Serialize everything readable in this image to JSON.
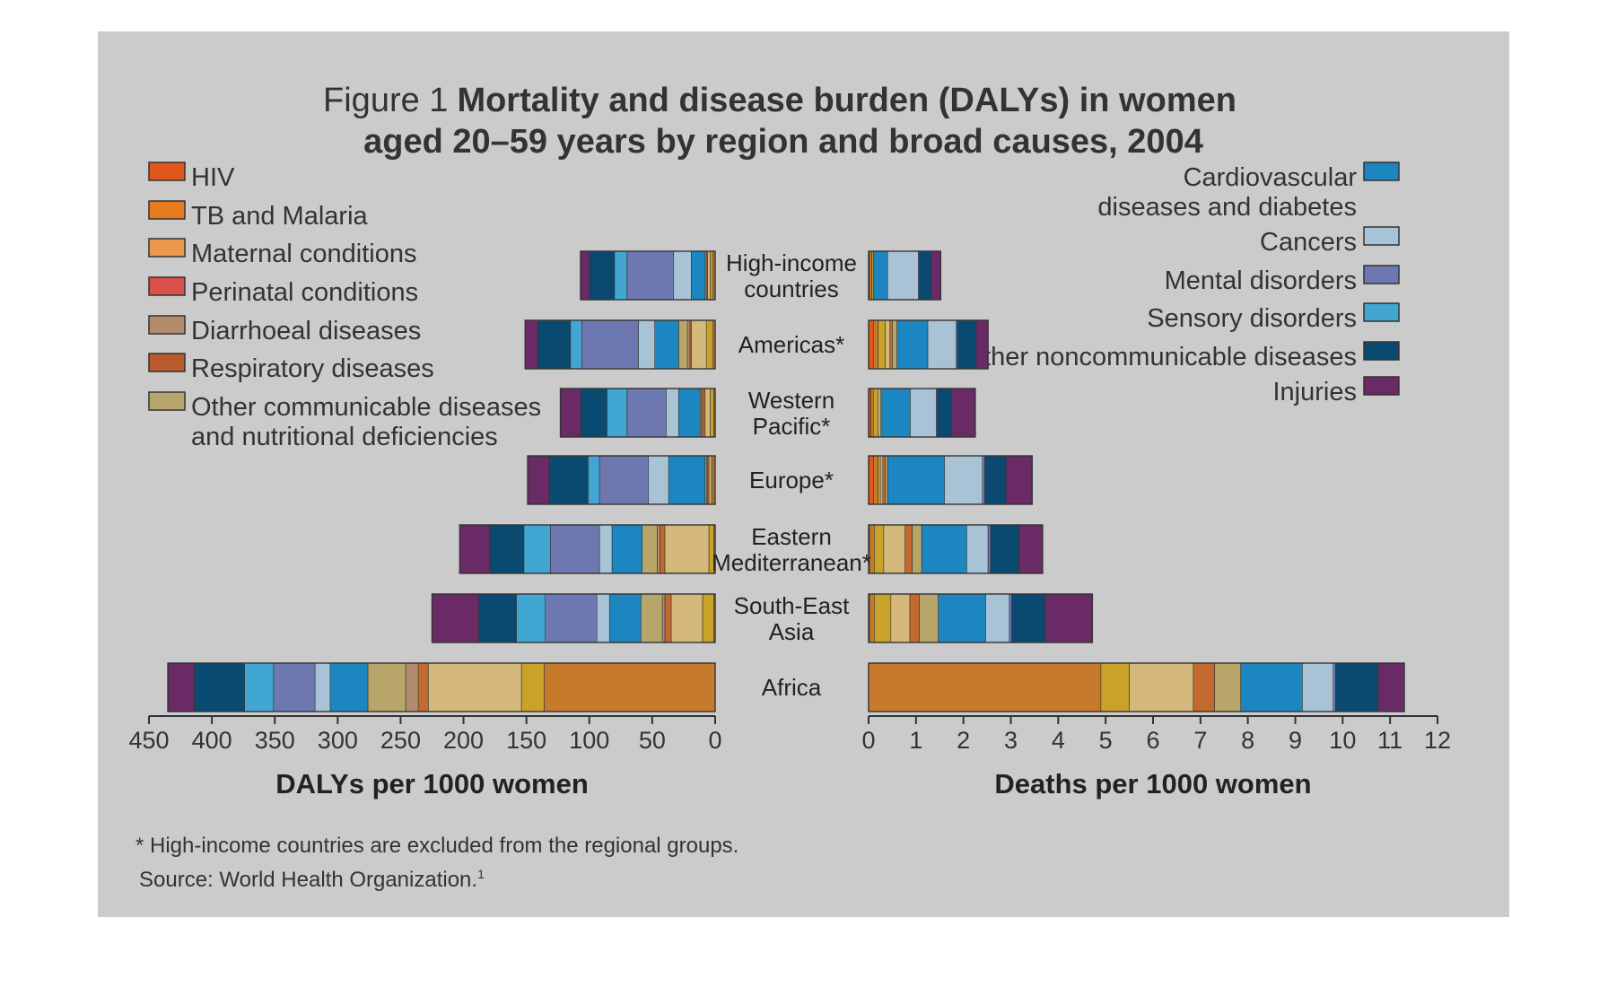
{
  "title": {
    "prefix": "Figure 1",
    "line1_bold": "Mortality and disease burden (DALYs) in women",
    "line2_bold": "aged 20–59 years by region and broad causes, 2004"
  },
  "legend_left": [
    {
      "label": "HIV",
      "color": "#e0561b"
    },
    {
      "label": "TB and Malaria",
      "color": "#e87a1e"
    },
    {
      "label": "Maternal conditions",
      "color": "#ea9a4a"
    },
    {
      "label": "Perinatal conditions",
      "color": "#d94f4a"
    },
    {
      "label": "Diarrhoeal diseases",
      "color": "#b38b6d"
    },
    {
      "label": "Respiratory diseases",
      "color": "#b85a2a"
    },
    {
      "label": "Other communicable diseases",
      "label2": "and nutritional deficiencies",
      "color": "#b8a56a"
    }
  ],
  "legend_right": [
    {
      "label": "Cardiovascular",
      "label2": "diseases and diabetes",
      "color": "#1b86bf"
    },
    {
      "label": "Cancers",
      "color": "#a9c3d6"
    },
    {
      "label": "Mental disorders",
      "color": "#6e78b0"
    },
    {
      "label": "Sensory disorders",
      "color": "#41a7d2"
    },
    {
      "label": "Other noncommunicable diseases",
      "color": "#0b4a70"
    },
    {
      "label": "Injuries",
      "color": "#6a2a66"
    }
  ],
  "chart_data": [
    {
      "type": "bar",
      "orientation": "horizontal",
      "stacked": true,
      "direction": "right-to-left",
      "xlabel": "DALYs per 1000 women",
      "xlim": [
        450,
        0
      ],
      "xticks": [
        "450",
        "400",
        "350",
        "300",
        "250",
        "200",
        "150",
        "100",
        "50",
        "0"
      ],
      "categories": [
        "High-income countries",
        "Americas*",
        "Western Pacific*",
        "Europe*",
        "Eastern Mediterranean*",
        "South-East Asia",
        "Africa"
      ],
      "series": [
        {
          "name": "TB and Malaria",
          "color": "#c77a2c",
          "values": [
            2,
            2,
            1,
            2,
            1,
            1,
            136
          ]
        },
        {
          "name": "Maternal conditions",
          "color": "#c9a22a",
          "values": [
            2,
            5,
            3,
            1,
            4,
            9,
            18
          ]
        },
        {
          "name": "Other communicable diseases and nutritional deficiencies",
          "color": "#d5b97c",
          "values": [
            2,
            12,
            4,
            2,
            35,
            25,
            74
          ]
        },
        {
          "name": "Respiratory diseases",
          "color": "#c16a2d",
          "values": [
            1,
            1,
            2,
            1,
            4,
            5,
            8
          ]
        },
        {
          "name": "Diarrhoeal diseases",
          "color": "#b38b6d",
          "values": [
            1,
            2,
            1,
            1,
            2,
            2,
            10
          ]
        },
        {
          "name": "Other communicable (outer)",
          "color": "#b8a56a",
          "values": [
            0,
            7,
            1,
            1,
            12,
            17,
            30
          ]
        },
        {
          "name": "Cardiovascular diseases and diabetes",
          "color": "#1b86bf",
          "values": [
            11,
            19,
            17,
            29,
            24,
            25,
            30
          ]
        },
        {
          "name": "Cancers",
          "color": "#a9c3d6",
          "values": [
            14,
            13,
            10,
            16,
            10,
            10,
            12
          ]
        },
        {
          "name": "Mental disorders",
          "color": "#6e78b0",
          "values": [
            37,
            45,
            31,
            39,
            39,
            41,
            33
          ]
        },
        {
          "name": "Sensory disorders",
          "color": "#41a7d2",
          "values": [
            10,
            9,
            16,
            9,
            21,
            23,
            23
          ]
        },
        {
          "name": "Other noncommunicable diseases",
          "color": "#0b4a70",
          "values": [
            20,
            26,
            21,
            31,
            27,
            30,
            40
          ]
        },
        {
          "name": "Injuries",
          "color": "#6a2a66",
          "values": [
            7,
            10,
            16,
            17,
            24,
            37,
            21
          ]
        }
      ]
    },
    {
      "type": "bar",
      "orientation": "horizontal",
      "stacked": true,
      "direction": "left-to-right",
      "xlabel": "Deaths per 1000 women",
      "xlim": [
        0,
        12
      ],
      "xticks": [
        "0",
        "1",
        "2",
        "3",
        "4",
        "5",
        "6",
        "7",
        "8",
        "9",
        "10",
        "11",
        "12"
      ],
      "categories": [
        "High-income countries",
        "Americas*",
        "Western Pacific*",
        "Europe*",
        "Eastern Mediterranean*",
        "South-East Asia",
        "Africa"
      ],
      "series": [
        {
          "name": "HIV",
          "color": "#e0561b",
          "values": [
            0.02,
            0.1,
            0.05,
            0.1,
            0.02,
            0.02,
            0
          ]
        },
        {
          "name": "TB and Malaria",
          "color": "#c77a2c",
          "values": [
            0.05,
            0.1,
            0.05,
            0.1,
            0.1,
            0.1,
            4.9
          ]
        },
        {
          "name": "Maternal conditions",
          "color": "#c9a22a",
          "values": [
            0.03,
            0.15,
            0.1,
            0.05,
            0.2,
            0.35,
            0.6
          ]
        },
        {
          "name": "Other communicable diseases and nutritional deficiencies",
          "color": "#d5b97c",
          "values": [
            0,
            0.1,
            0.05,
            0.05,
            0.45,
            0.4,
            1.35
          ]
        },
        {
          "name": "Respiratory diseases",
          "color": "#c16a2d",
          "values": [
            0,
            0.05,
            0,
            0.05,
            0.15,
            0.2,
            0.45
          ]
        },
        {
          "name": "Other communicable (outer)",
          "color": "#b8a56a",
          "values": [
            0,
            0.1,
            0.03,
            0.05,
            0.2,
            0.4,
            0.55
          ]
        },
        {
          "name": "Cardiovascular diseases and diabetes",
          "color": "#1b86bf",
          "values": [
            0.3,
            0.65,
            0.6,
            1.2,
            0.95,
            1.0,
            1.3
          ]
        },
        {
          "name": "Cancers",
          "color": "#a9c3d6",
          "values": [
            0.65,
            0.6,
            0.55,
            0.8,
            0.45,
            0.5,
            0.65
          ]
        },
        {
          "name": "Mental disorders",
          "color": "#6e78b0",
          "values": [
            0.02,
            0.02,
            0.02,
            0.05,
            0.05,
            0.05,
            0.05
          ]
        },
        {
          "name": "Other noncommunicable diseases",
          "color": "#0b4a70",
          "values": [
            0.25,
            0.4,
            0.3,
            0.45,
            0.6,
            0.7,
            0.9
          ]
        },
        {
          "name": "Injuries",
          "color": "#6a2a66",
          "values": [
            0.2,
            0.25,
            0.5,
            0.55,
            0.5,
            1.0,
            0.55
          ]
        }
      ]
    }
  ],
  "notes": {
    "line1": "* High-income countries are excluded from the regional groups.",
    "line2": "Source: World Health Organization.",
    "sup": "1"
  }
}
